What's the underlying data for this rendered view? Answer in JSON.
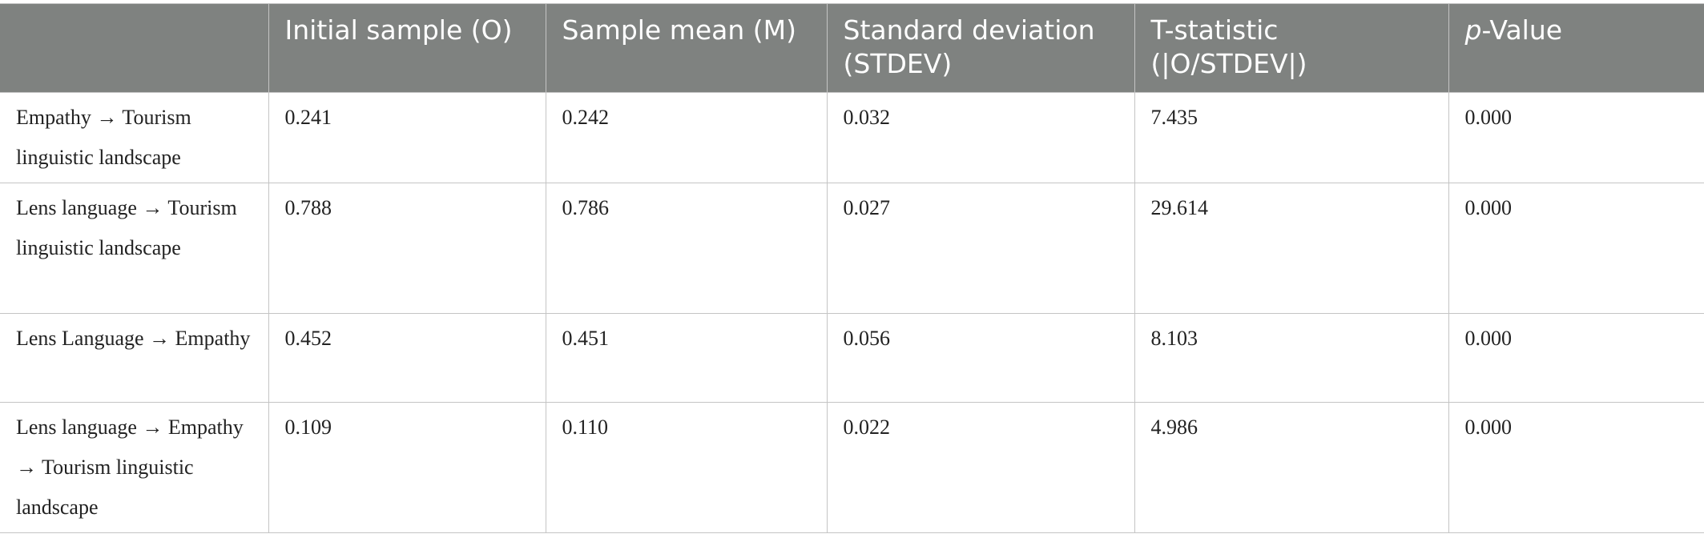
{
  "table": {
    "header": [
      "Initial sample (O)",
      "Sample mean (M)",
      "Standard deviation (STDEV)",
      "T-statistic (|O/STDEV|)",
      {
        "italic": "p",
        "rest": "-Value"
      }
    ],
    "rows": [
      [
        "Empathy → Tourism linguistic landscape",
        "0.241",
        "0.242",
        "0.032",
        "7.435",
        "0.000"
      ],
      [
        "Lens language → Tourism linguistic landscape",
        "0.788",
        "0.786",
        "0.027",
        "29.614",
        "0.000"
      ],
      [
        "Lens Language → Empathy",
        "0.452",
        "0.451",
        "0.056",
        "8.103",
        "0.000"
      ],
      [
        "Lens language → Empathy → Tourism linguistic landscape",
        "0.109",
        "0.110",
        "0.022",
        "4.986",
        "0.000"
      ]
    ]
  }
}
